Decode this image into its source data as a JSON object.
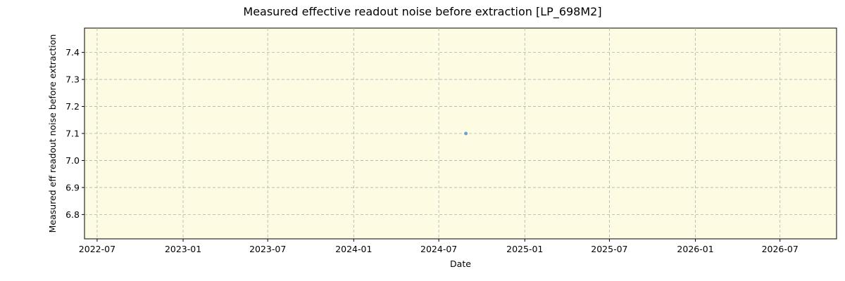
{
  "chart_data": {
    "type": "scatter",
    "title": "Measured effective readout noise before extraction [LP_698M2]",
    "xlabel": "Date",
    "ylabel": "Measured eff readout noise before extraction",
    "x_ticks": [
      "2022-07",
      "2023-01",
      "2023-07",
      "2024-01",
      "2024-07",
      "2025-01",
      "2025-07",
      "2026-01",
      "2026-07"
    ],
    "y_ticks": [
      6.8,
      6.9,
      7.0,
      7.1,
      7.2,
      7.3,
      7.4
    ],
    "xlim": [
      "2022-06-04",
      "2026-10-30"
    ],
    "ylim": [
      6.71,
      7.49
    ],
    "grid": true,
    "background_color": "#fdfce3",
    "point_color": "#5b9bc8",
    "points": [
      {
        "x": "2024-08-28",
        "y": 7.1
      }
    ]
  }
}
